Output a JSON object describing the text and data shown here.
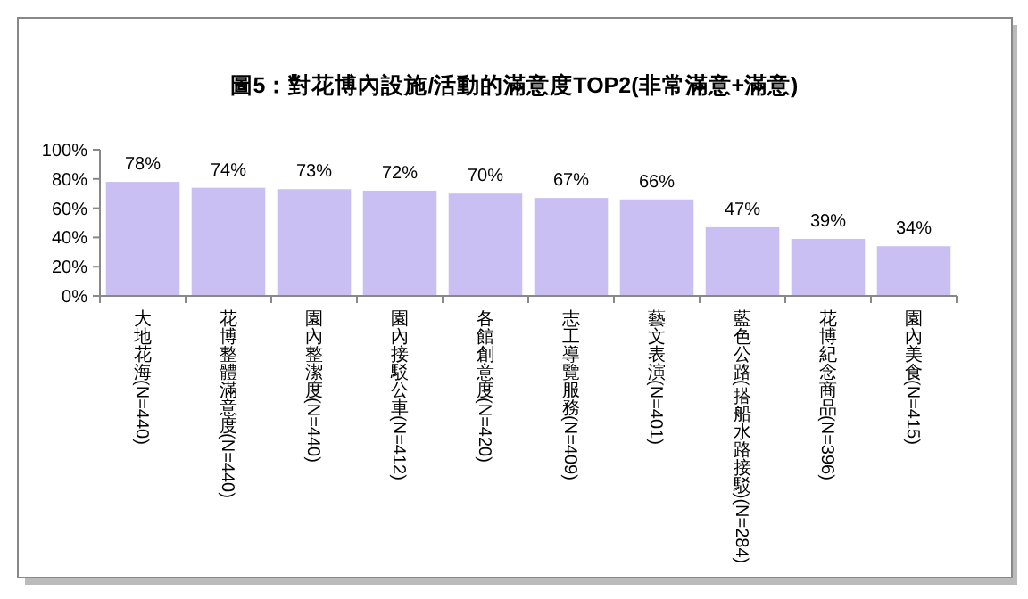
{
  "chart_data": {
    "type": "bar",
    "title": "圖5：對花博內設施/活動的滿意度TOP2(非常滿意+滿意)",
    "categories": [
      "大地花海(N=440)",
      "花博整體滿意度(N=440)",
      "園內整潔度(N=440)",
      "園內接駁公車(N=412)",
      "各館創意度(N=420)",
      "志工導覽服務(N=409)",
      "藝文表演(N=401)",
      "藍色公路(搭船水路接駁)(N=284)",
      "花博紀念商品(N=396)",
      "園內美食(N=415)"
    ],
    "values": [
      78,
      74,
      73,
      72,
      70,
      67,
      66,
      47,
      39,
      34
    ],
    "value_labels": [
      "78%",
      "74%",
      "73%",
      "72%",
      "70%",
      "67%",
      "66%",
      "47%",
      "39%",
      "34%"
    ],
    "color": "#c9bff2",
    "ylim": [
      0,
      100
    ],
    "yticks": [
      {
        "value": 0,
        "label": "0%"
      },
      {
        "value": 20,
        "label": "20%"
      },
      {
        "value": 40,
        "label": "40%"
      },
      {
        "value": 60,
        "label": "60%"
      },
      {
        "value": 80,
        "label": "80%"
      },
      {
        "value": 100,
        "label": "100%"
      }
    ],
    "grid": false
  }
}
